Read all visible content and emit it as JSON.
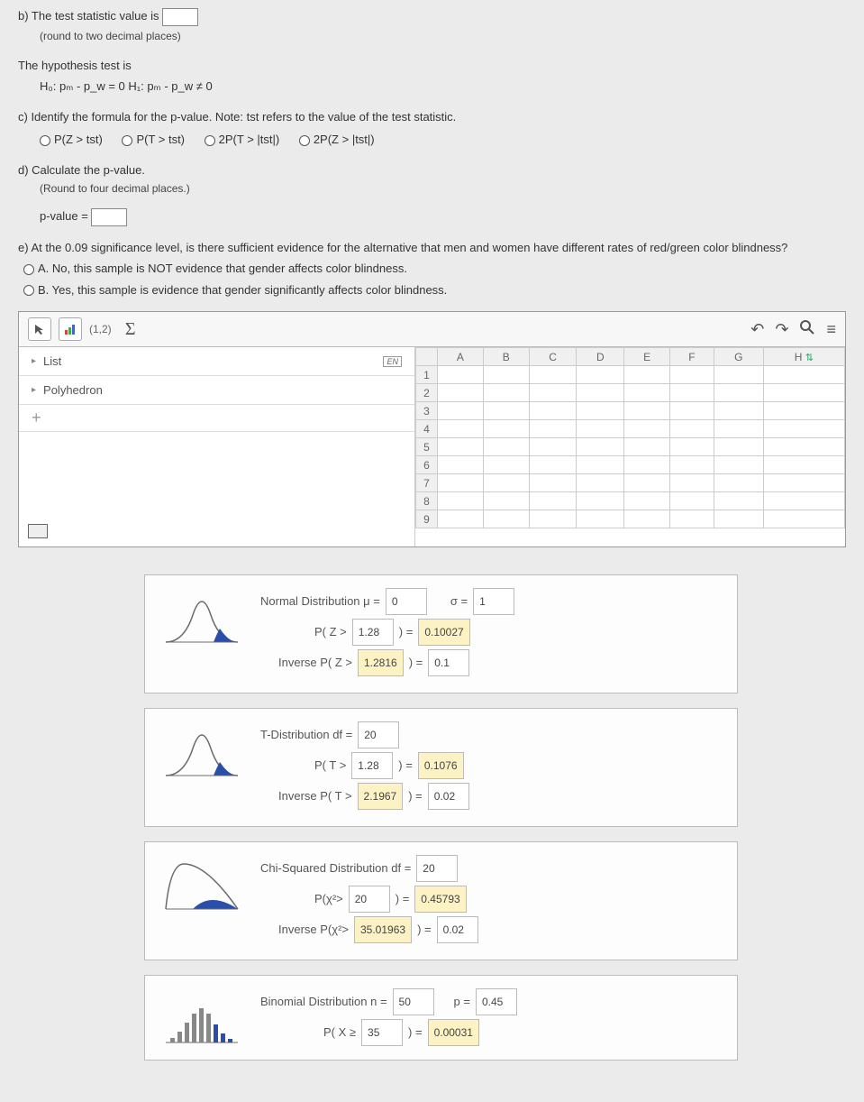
{
  "partB": {
    "prefix": "b) The test statistic value is",
    "hint": "(round to two decimal places)"
  },
  "hypothesis": {
    "lead": "The hypothesis test is",
    "text": "H₀: pₘ - p_w = 0     H₁: pₘ - p_w ≠ 0"
  },
  "partC": {
    "text": "c) Identify the formula for the p-value. Note: tst refers to the value of the test statistic.",
    "options": [
      "P(Z > tst)",
      "P(T > tst)",
      "2P(T > |tst|)",
      "2P(Z > |tst|)"
    ]
  },
  "partD": {
    "line1": "d) Calculate the p-value.",
    "hint": "(Round to four decimal places.)",
    "label": "p-value ="
  },
  "partE": {
    "text": "e) At the 0.09 significance level, is there sufficient evidence for the alternative that men and women have different rates of red/green color blindness?",
    "optA": "A. No, this sample is NOT evidence that gender affects color blindness.",
    "optB": "B. Yes, this sample is evidence that gender significantly affects color blindness."
  },
  "app": {
    "coords": "(1,2)",
    "leftItems": [
      "List",
      "Polyhedron"
    ],
    "en": "EN",
    "cols": [
      "A",
      "B",
      "C",
      "D",
      "E",
      "F",
      "G",
      "H"
    ],
    "rows": [
      "1",
      "2",
      "3",
      "4",
      "5",
      "6",
      "7",
      "8",
      "9"
    ]
  },
  "normal": {
    "title": "Normal Distribution  μ =",
    "mu": "0",
    "sigmaLabel": "σ =",
    "sigma": "1",
    "pzLabel": "P( Z >",
    "pzVal": "1.28",
    "pzRes": "0.10027",
    "invLabel": "Inverse  P( Z >",
    "invVal": "1.2816",
    "invRes": "0.1"
  },
  "tdist": {
    "title": "T-Distribution  df =",
    "df": "20",
    "ptLabel": "P( T >",
    "ptVal": "1.28",
    "ptRes": "0.1076",
    "invLabel": "Inverse  P( T >",
    "invVal": "2.1967",
    "invRes": "0.02"
  },
  "chi": {
    "title": "Chi-Squared Distribution  df =",
    "df": "20",
    "pLabel": "P(χ²>",
    "pVal": "20",
    "pRes": "0.45793",
    "invLabel": "Inverse  P(χ²>",
    "invVal": "35.01963",
    "invRes": "0.02"
  },
  "binom": {
    "title": "Binomial Distribution  n =",
    "n": "50",
    "pLabel": "p =",
    "p": "0.45",
    "p2Label": "P( X ≥",
    "p2Val": "35",
    "p2Res": "0.00031"
  },
  "colors": {
    "curveStroke": "#6a6a6a",
    "curveFill": "#2b4ea8"
  }
}
